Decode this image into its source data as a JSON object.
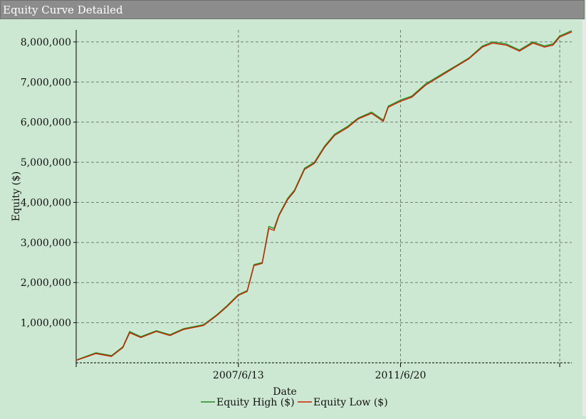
{
  "window": {
    "title": "Equity Curve Detailed"
  },
  "chart_data": {
    "type": "line",
    "title": "",
    "xlabel": "Date",
    "ylabel": "Equity ($)",
    "x_ticks": [
      "2007/6/13",
      "2011/6/20"
    ],
    "y_ticks": [
      "1,000,000",
      "2,000,000",
      "3,000,000",
      "4,000,000",
      "5,000,000",
      "6,000,000",
      "7,000,000",
      "8,000,000"
    ],
    "y_tick_values": [
      1000000,
      2000000,
      3000000,
      4000000,
      5000000,
      6000000,
      7000000,
      8000000
    ],
    "ylim": [
      0,
      8300000
    ],
    "xlim": [
      "2003/6/5",
      "2015/9/18"
    ],
    "grid": true,
    "legend_position": "bottom-center",
    "series": [
      {
        "name": "Equity High ($)",
        "color": "#228b22",
        "x": [
          "2003/6/5",
          "2003/12/1",
          "2004/4/20",
          "2004/8/1",
          "2004/10/1",
          "2005/1/10",
          "2005/6/1",
          "2005/10/1",
          "2006/2/1",
          "2006/8/1",
          "2006/12/1",
          "2007/3/1",
          "2007/6/13",
          "2007/9/1",
          "2007/11/1",
          "2008/1/15",
          "2008/3/15",
          "2008/5/1",
          "2008/6/15",
          "2008/9/1",
          "2008/11/1",
          "2009/2/1",
          "2009/5/1",
          "2009/8/1",
          "2009/11/1",
          "2010/3/1",
          "2010/6/1",
          "2010/10/1",
          "2011/1/15",
          "2011/3/1",
          "2011/6/20",
          "2011/10/1",
          "2012/2/1",
          "2012/7/1",
          "2012/11/1",
          "2013/3/1",
          "2013/7/1",
          "2013/10/1",
          "2014/2/1",
          "2014/6/1",
          "2014/10/1",
          "2015/1/15",
          "2015/4/1",
          "2015/6/1",
          "2015/9/18"
        ],
        "values": [
          70000,
          250000,
          180000,
          400000,
          780000,
          650000,
          800000,
          700000,
          850000,
          950000,
          1200000,
          1420000,
          1700000,
          1800000,
          2450000,
          2500000,
          3400000,
          3350000,
          3700000,
          4100000,
          4300000,
          4850000,
          5000000,
          5400000,
          5700000,
          5900000,
          6100000,
          6250000,
          6050000,
          6400000,
          6550000,
          6650000,
          6950000,
          7200000,
          7400000,
          7600000,
          7900000,
          8000000,
          7950000,
          7800000,
          8000000,
          7900000,
          7950000,
          8150000,
          8280000
        ]
      },
      {
        "name": "Equity Low ($)",
        "color": "#cc2200",
        "x": [
          "2003/6/5",
          "2003/12/1",
          "2004/4/20",
          "2004/8/1",
          "2004/10/1",
          "2005/1/10",
          "2005/6/1",
          "2005/10/1",
          "2006/2/1",
          "2006/8/1",
          "2006/12/1",
          "2007/3/1",
          "2007/6/13",
          "2007/9/1",
          "2007/11/1",
          "2008/1/15",
          "2008/3/15",
          "2008/5/1",
          "2008/6/15",
          "2008/9/1",
          "2008/11/1",
          "2009/2/1",
          "2009/5/1",
          "2009/8/1",
          "2009/11/1",
          "2010/3/1",
          "2010/6/1",
          "2010/10/1",
          "2011/1/15",
          "2011/3/1",
          "2011/6/20",
          "2011/10/1",
          "2012/2/1",
          "2012/7/1",
          "2012/11/1",
          "2013/3/1",
          "2013/7/1",
          "2013/10/1",
          "2014/2/1",
          "2014/6/1",
          "2014/10/1",
          "2015/1/15",
          "2015/4/1",
          "2015/6/1",
          "2015/9/18"
        ],
        "values": [
          60000,
          230000,
          160000,
          380000,
          750000,
          630000,
          780000,
          680000,
          830000,
          930000,
          1180000,
          1400000,
          1680000,
          1780000,
          2420000,
          2480000,
          3350000,
          3300000,
          3670000,
          4070000,
          4270000,
          4820000,
          4970000,
          5370000,
          5670000,
          5870000,
          6080000,
          6220000,
          6020000,
          6370000,
          6520000,
          6620000,
          6920000,
          7170000,
          7380000,
          7580000,
          7870000,
          7970000,
          7920000,
          7770000,
          7970000,
          7870000,
          7920000,
          8120000,
          8250000
        ]
      }
    ]
  }
}
